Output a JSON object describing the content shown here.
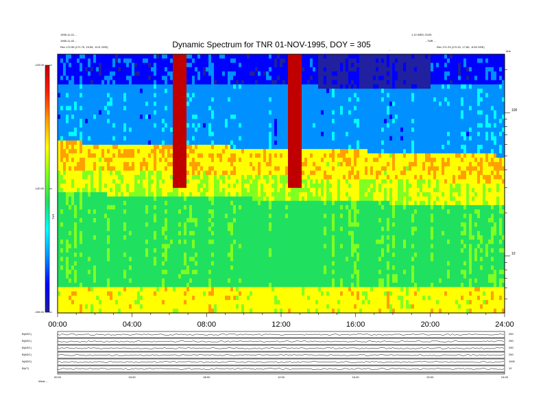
{
  "header": {
    "title": "Dynamic Spectrum for TNR 01-NOV-1995, DOY = 305",
    "left_lines": [
      "1995-11-01 ...",
      "1995-11-02 ...",
      "Rev 172.55 (171.75, 15.55, -5.01 GSE)"
    ],
    "right_lines": [
      "1.10 WED 23:05",
      "...TNR ...",
      "Rev 171.23 (170.21, 17.80, -5.59 GSE)"
    ],
    "mid_label": "..."
  },
  "colorbar": {
    "ticks": [
      {
        "value": -125,
        "label": "-125.00"
      },
      {
        "value": -140,
        "label": "-140.00"
      },
      {
        "value": -155,
        "label": "-155.00"
      }
    ],
    "unit_label": "TNR",
    "colors": [
      "#2020a0",
      "#0000ff",
      "#0090ff",
      "#00ffff",
      "#20e060",
      "#80ff20",
      "#ffff00",
      "#ffa000",
      "#ff2000",
      "#c00000"
    ]
  },
  "right_axis": {
    "unit_label": "kHz",
    "ticks": [
      {
        "value": 100,
        "label": "100"
      },
      {
        "value": 10,
        "label": "10"
      }
    ]
  },
  "bottom_axis": {
    "tick_labels": [
      "00:00",
      "04:00",
      "08:00",
      "12:00",
      "16:00",
      "20:00",
      "24:00"
    ]
  },
  "panels": [
    {
      "label": "B(ADC)",
      "right_label": "250"
    },
    {
      "label": "B(ADC)",
      "right_label": "250"
    },
    {
      "label": "B(ADC)",
      "right_label": "250"
    },
    {
      "label": "B(ADC)",
      "right_label": "250"
    },
    {
      "label": "N(ADC)",
      "right_label": "1000"
    },
    {
      "label": "B(nT)",
      "right_label": "10"
    }
  ],
  "mini_ticks": [
    "00:00",
    "04:00",
    "08:00",
    "12:00",
    "16:00",
    "20:00",
    "24:00"
  ],
  "footer_label": "Wind-...",
  "chart_data": {
    "type": "heatmap",
    "title": "Dynamic Spectrum for TNR 01-NOV-1995, DOY = 305",
    "x_range_hours": [
      0,
      24
    ],
    "y_unit": "kHz",
    "y_scale": "log",
    "y_range_khz": [
      4,
      256
    ],
    "color_range_db": [
      -155,
      -125
    ],
    "features": [
      {
        "name": "plasma line",
        "start_khz": 50,
        "end_khz": 40
      },
      {
        "name": "broadband burst",
        "time_hours": 12.7,
        "khz_range": [
          30,
          256
        ]
      },
      {
        "name": "burst",
        "time_hours": 6.5,
        "khz_range": [
          30,
          256
        ]
      }
    ]
  }
}
